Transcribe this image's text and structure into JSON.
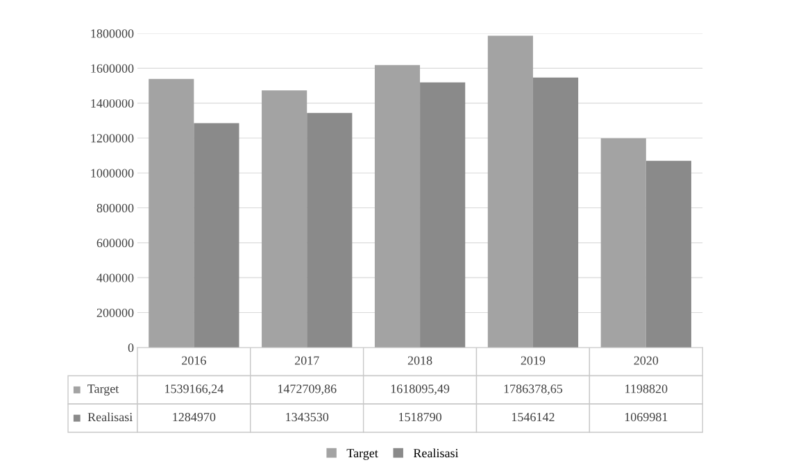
{
  "chart_data": {
    "type": "bar",
    "categories": [
      "2016",
      "2017",
      "2018",
      "2019",
      "2020"
    ],
    "series": [
      {
        "name": "Target",
        "color": "#a3a3a3",
        "values": [
          1539166.24,
          1472709.86,
          1618095.49,
          1786378.65,
          1198820
        ],
        "value_labels": [
          "1539166,24",
          "1472709,86",
          "1618095,49",
          "1786378,65",
          "1198820"
        ]
      },
      {
        "name": "Realisasi",
        "color": "#8a8a8a",
        "values": [
          1284970,
          1343530,
          1518790,
          1546142,
          1069981
        ],
        "value_labels": [
          "1284970",
          "1343530",
          "1518790",
          "1546142",
          "1069981"
        ]
      }
    ],
    "ylim": [
      0,
      1800000
    ],
    "yticks": [
      0,
      200000,
      400000,
      600000,
      800000,
      1000000,
      1200000,
      1400000,
      1600000,
      1800000
    ],
    "grid": "y",
    "legend": "bottom"
  }
}
